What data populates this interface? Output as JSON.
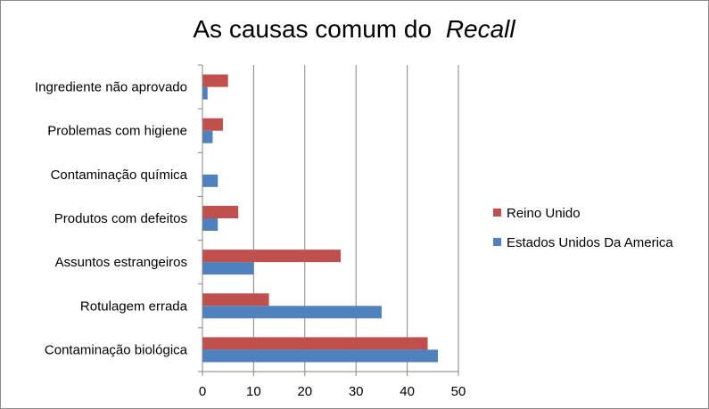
{
  "chart_data": {
    "type": "bar",
    "orientation": "horizontal",
    "title": "As causas comum do",
    "title_emphasis": "Recall",
    "categories": [
      "Ingrediente não aprovado",
      "Problemas com higiene",
      "Contaminação química",
      "Produtos com defeitos",
      "Assuntos estrangeiros",
      "Rotulagem errada",
      "Contaminação biológica"
    ],
    "series": [
      {
        "name": "Reino Unido",
        "color": "#c0504d",
        "values": [
          5,
          4,
          0,
          7,
          27,
          13,
          44
        ]
      },
      {
        "name": "Estados Unidos Da America",
        "color": "#4f81bd",
        "values": [
          1,
          2,
          3,
          3,
          10,
          35,
          46
        ]
      }
    ],
    "xlim": [
      0,
      50
    ],
    "xticks": [
      0,
      10,
      20,
      30,
      40,
      50
    ],
    "grid": true,
    "legend_position": "right"
  }
}
